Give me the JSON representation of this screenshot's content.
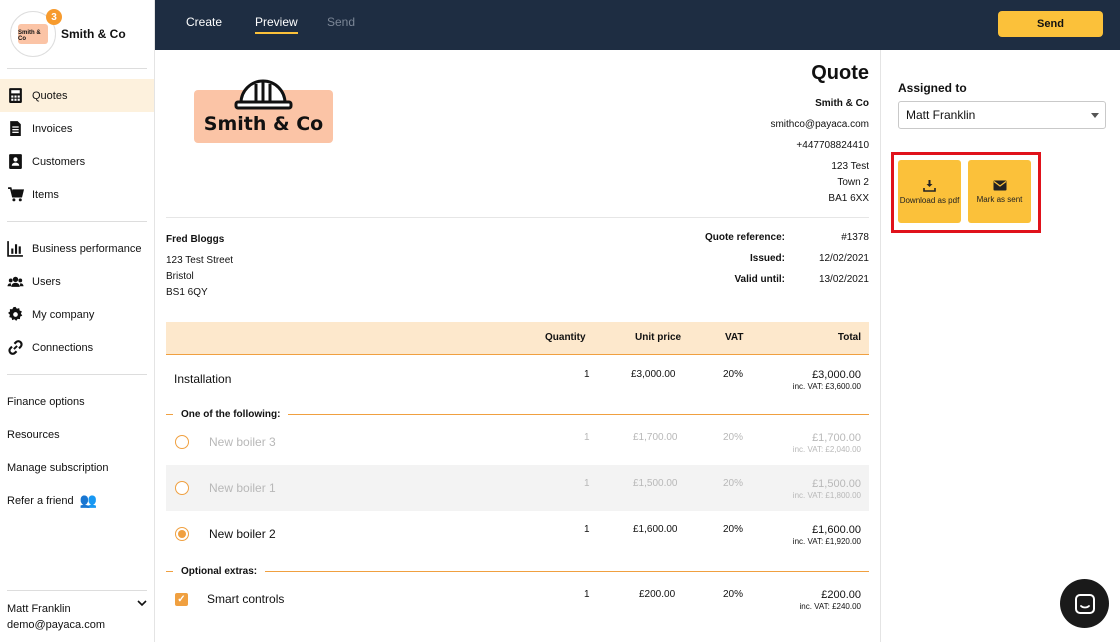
{
  "brand": {
    "name": "Smith & Co",
    "badge": "3",
    "logo_small_text": "Smith & Co"
  },
  "sidebar": {
    "nav": [
      {
        "label": "Quotes",
        "icon": "calculator-icon"
      },
      {
        "label": "Invoices",
        "icon": "document-icon"
      },
      {
        "label": "Customers",
        "icon": "address-book-icon"
      },
      {
        "label": "Items",
        "icon": "cart-icon"
      }
    ],
    "nav2": [
      {
        "label": "Business performance",
        "icon": "bar-chart-icon"
      },
      {
        "label": "Users",
        "icon": "users-icon"
      },
      {
        "label": "My company",
        "icon": "gear-icon"
      },
      {
        "label": "Connections",
        "icon": "link-icon"
      }
    ],
    "links": [
      "Finance options",
      "Resources",
      "Manage subscription",
      "Refer a friend"
    ],
    "user": {
      "name": "Matt Franklin",
      "email": "demo@payaca.com"
    }
  },
  "topbar": {
    "tabs": [
      "Create",
      "Preview",
      "Send"
    ],
    "active_tab": "Preview",
    "send_label": "Send"
  },
  "document": {
    "title": "Quote",
    "logo_text": "Smith & Co",
    "company": {
      "name": "Smith & Co",
      "email": "smithco@payaca.com",
      "phone": "+447708824410",
      "address": [
        "123 Test",
        "Town 2",
        "BA1 6XX"
      ]
    },
    "customer": {
      "name": "Fred Bloggs",
      "address": [
        "123 Test Street",
        "Bristol",
        "BS1 6QY"
      ]
    },
    "meta": [
      {
        "label": "Quote reference:",
        "value": "#1378"
      },
      {
        "label": "Issued:",
        "value": "12/02/2021"
      },
      {
        "label": "Valid until:",
        "value": "13/02/2021"
      }
    ],
    "columns": {
      "quantity": "Quantity",
      "unit_price": "Unit price",
      "vat": "VAT",
      "total": "Total"
    },
    "items": [
      {
        "desc": "Installation",
        "qty": "1",
        "price": "£3,000.00",
        "vat": "20%",
        "total": "£3,000.00",
        "incvat": "inc. VAT: £3,600.00"
      }
    ],
    "section_one_of": "One of the following:",
    "options": [
      {
        "desc": "New boiler 3",
        "qty": "1",
        "price": "£1,700.00",
        "vat": "20%",
        "total": "£1,700.00",
        "incvat": "inc. VAT: £2,040.00",
        "selected": false
      },
      {
        "desc": "New boiler 1",
        "qty": "1",
        "price": "£1,500.00",
        "vat": "20%",
        "total": "£1,500.00",
        "incvat": "inc. VAT: £1,800.00",
        "selected": false
      },
      {
        "desc": "New boiler 2",
        "qty": "1",
        "price": "£1,600.00",
        "vat": "20%",
        "total": "£1,600.00",
        "incvat": "inc. VAT: £1,920.00",
        "selected": true
      }
    ],
    "section_extras": "Optional extras:",
    "extras": [
      {
        "desc": "Smart controls",
        "qty": "1",
        "price": "£200.00",
        "vat": "20%",
        "total": "£200.00",
        "incvat": "inc. VAT: £240.00",
        "checked": true
      }
    ]
  },
  "panel": {
    "assigned_label": "Assigned to",
    "assigned_value": "Matt Franklin",
    "download_label": "Download as pdf",
    "mark_sent_label": "Mark as sent"
  },
  "colors": {
    "navy": "#1e2d42",
    "accent": "#fbc13a",
    "orange": "#f0a040",
    "highlight": "#e0121b"
  }
}
